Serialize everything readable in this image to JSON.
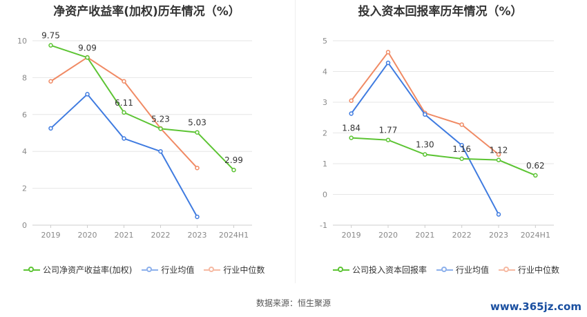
{
  "source_text": "数据来源：恒生聚源",
  "watermark": "www.365jz.com",
  "colors": {
    "company": "#5cc433",
    "industry_avg": "#3f7be0",
    "industry_median": "#f08a64",
    "grid": "#e6e6e6",
    "axis": "#cccccc"
  },
  "chart_data": [
    {
      "type": "line",
      "title": "净资产收益率(加权)历年情况（%）",
      "categories": [
        "2019",
        "2020",
        "2021",
        "2022",
        "2023",
        "2024H1"
      ],
      "ylim": [
        0,
        10
      ],
      "yticks": [
        0,
        2,
        4,
        6,
        8,
        10
      ],
      "grid": true,
      "legend": "bottom",
      "series": [
        {
          "name": "公司净资产收益率(加权)",
          "key": "company",
          "values": [
            9.75,
            9.09,
            6.11,
            5.23,
            5.03,
            2.99
          ],
          "labels": [
            "9.75",
            "9.09",
            "6.11",
            "5.23",
            "5.03",
            "2.99"
          ]
        },
        {
          "name": "行业均值",
          "key": "industry_avg",
          "values": [
            5.25,
            7.1,
            4.7,
            4.0,
            0.45,
            null
          ]
        },
        {
          "name": "行业中位数",
          "key": "industry_median",
          "values": [
            7.8,
            9.1,
            7.8,
            5.25,
            3.1,
            null
          ]
        }
      ]
    },
    {
      "type": "line",
      "title": "投入资本回报率历年情况（%）",
      "categories": [
        "2019",
        "2020",
        "2021",
        "2022",
        "2023",
        "2024H1"
      ],
      "ylim": [
        -1,
        5
      ],
      "yticks": [
        -1,
        0,
        1,
        2,
        3,
        4,
        5
      ],
      "grid": true,
      "legend": "bottom",
      "series": [
        {
          "name": "公司投入资本回报率",
          "key": "company",
          "values": [
            1.84,
            1.77,
            1.3,
            1.16,
            1.12,
            0.62
          ],
          "labels": [
            "1.84",
            "1.77",
            "1.30",
            "1.16",
            "1.12",
            "0.62"
          ]
        },
        {
          "name": "行业均值",
          "key": "industry_avg",
          "values": [
            2.63,
            4.28,
            2.6,
            1.6,
            -0.65,
            null
          ]
        },
        {
          "name": "行业中位数",
          "key": "industry_median",
          "values": [
            3.05,
            4.63,
            2.65,
            2.27,
            1.3,
            null
          ]
        }
      ]
    }
  ]
}
